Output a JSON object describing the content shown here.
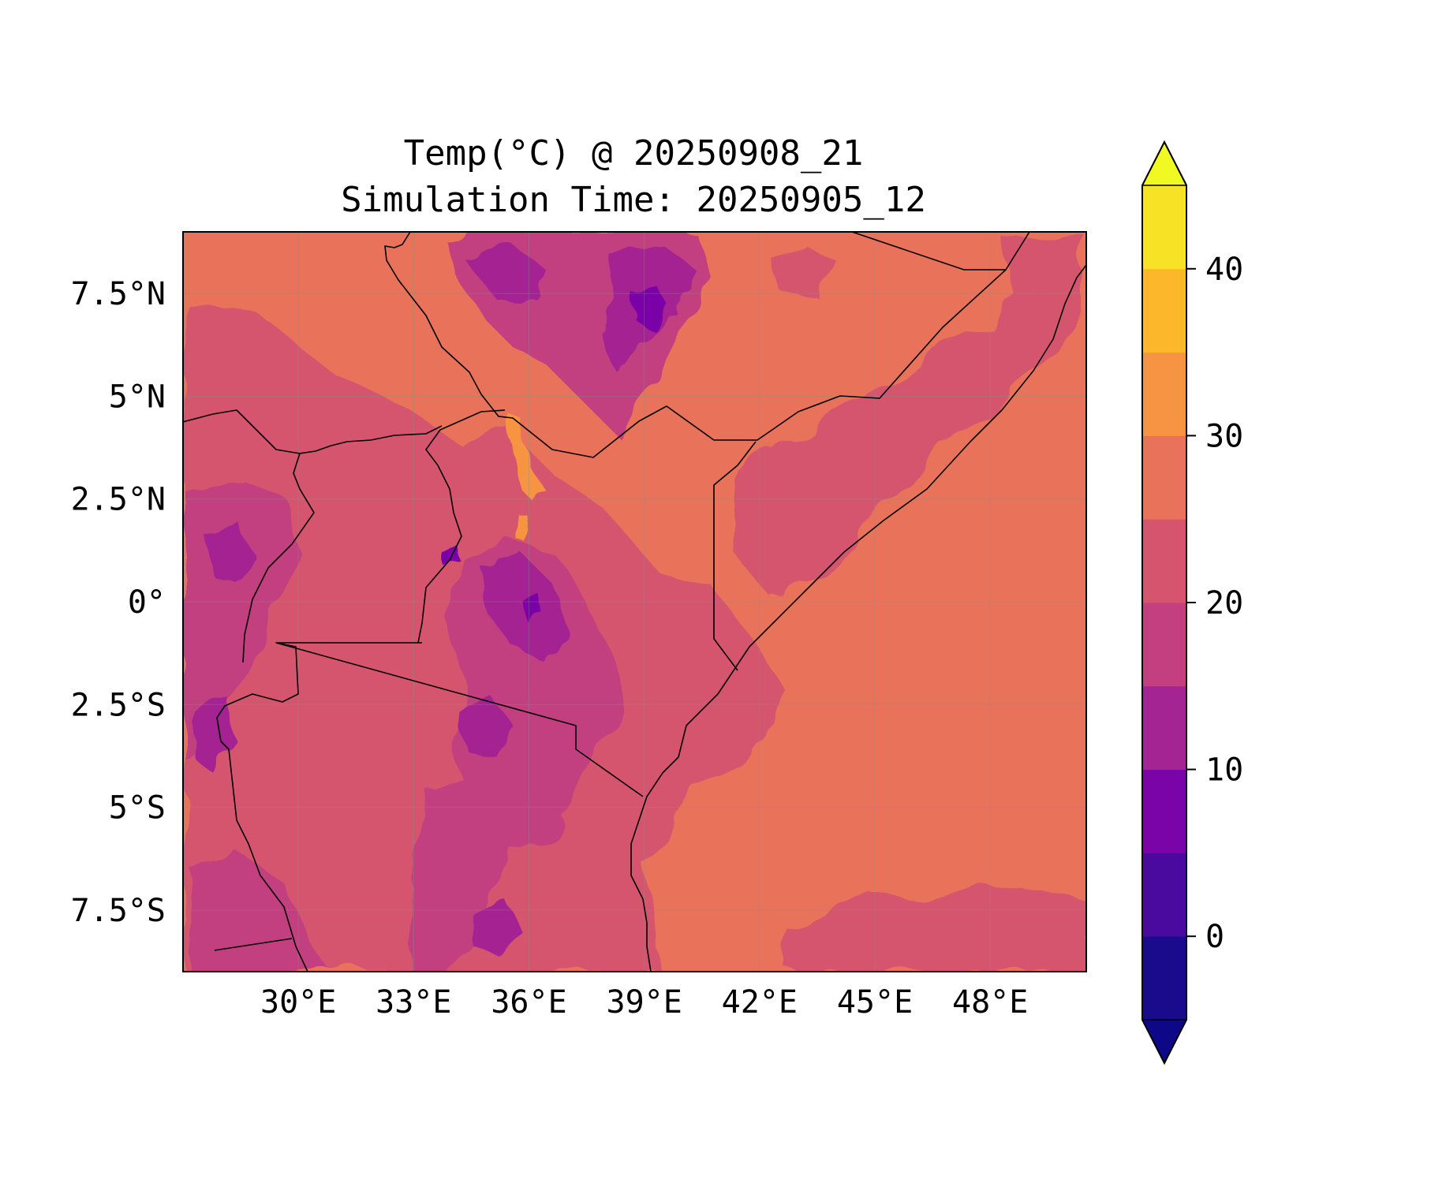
{
  "title": {
    "line1": "Temp(°C) @ 20250908_21",
    "line2": "Simulation Time: 20250905_12"
  },
  "map": {
    "projection": "PlateCarree",
    "extent_lon": [
      27.0,
      50.5
    ],
    "extent_lat": [
      -9.0,
      9.0
    ],
    "x_ticks": [
      {
        "value": 30,
        "label": "30°E"
      },
      {
        "value": 33,
        "label": "33°E"
      },
      {
        "value": 36,
        "label": "36°E"
      },
      {
        "value": 39,
        "label": "39°E"
      },
      {
        "value": 42,
        "label": "42°E"
      },
      {
        "value": 45,
        "label": "45°E"
      },
      {
        "value": 48,
        "label": "48°E"
      }
    ],
    "y_ticks": [
      {
        "value": 7.5,
        "label": "7.5°N"
      },
      {
        "value": 5,
        "label": "5°N"
      },
      {
        "value": 2.5,
        "label": "2.5°N"
      },
      {
        "value": 0,
        "label": "0°"
      },
      {
        "value": -2.5,
        "label": "2.5°S"
      },
      {
        "value": -5,
        "label": "5°S"
      },
      {
        "value": -7.5,
        "label": "7.5°S"
      }
    ],
    "gridlines": true,
    "field_color_ocean": "#e8735a",
    "field_color_land_warm": "#d6546e"
  },
  "colorbar": {
    "orientation": "vertical",
    "extend": "both",
    "range": [
      -5,
      45
    ],
    "levels": [
      -5,
      0,
      5,
      10,
      15,
      20,
      25,
      30,
      35,
      40,
      45
    ],
    "colors": [
      "#1a0a8c",
      "#4a0aa0",
      "#7a04a8",
      "#a52493",
      "#c33f80",
      "#d6546e",
      "#e8735a",
      "#f69443",
      "#fcb72b",
      "#f7e225"
    ],
    "under_color": "#0d0887",
    "over_color": "#f0f921",
    "ticks": [
      {
        "value": 0,
        "label": "0"
      },
      {
        "value": 10,
        "label": "10"
      },
      {
        "value": 20,
        "label": "20"
      },
      {
        "value": 30,
        "label": "30"
      },
      {
        "value": 40,
        "label": "40"
      }
    ]
  }
}
